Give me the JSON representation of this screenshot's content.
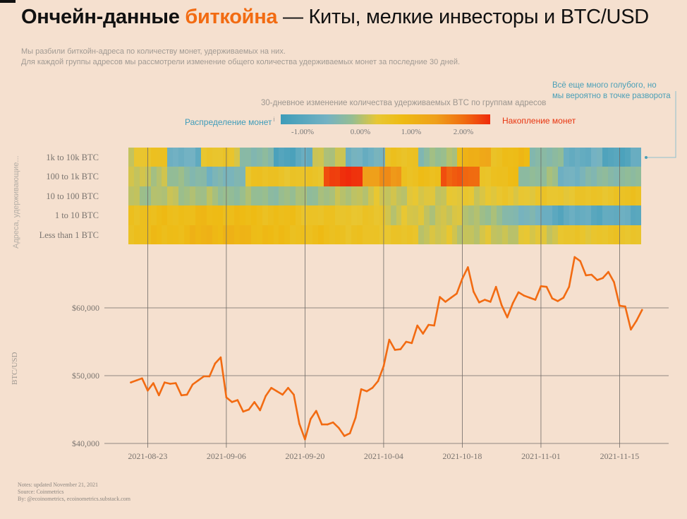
{
  "title": {
    "part1": "Ончейн-данные ",
    "part2": "биткойна",
    "part3": " — Киты, мелкие инвесторы и BTC/USD"
  },
  "subtitle": {
    "line1": "Мы разбили биткойн-адреса по количеству монет, удерживаемых на них.",
    "line2": "Для каждой группы адресов мы рассмотрели изменение общего количества удерживаемых монет за последние 30 дней."
  },
  "annotation": {
    "line1": "Всё еще много голубого, но",
    "line2": "мы вероятно в точке разворота"
  },
  "legend": {
    "title": "30-дневное изменение количества удерживаемых BTC по группам адресов",
    "left_label": "Распределение монет",
    "info_mark": "i",
    "right_label": "Накопление монет",
    "ticks": [
      "-1.00%",
      "0.00%",
      "1.00%",
      "2.00%"
    ],
    "colors": [
      "#3e9cb9",
      "#74b2c3",
      "#95bd93",
      "#e8c733",
      "#eebb14",
      "#efa01a",
      "#f06a10",
      "#ef2a0c"
    ]
  },
  "heatmap": {
    "y_title": "Адреса, удерживающие...",
    "rows": [
      "1k to 10k BTC",
      "100 to 1k BTC",
      "10 to 100 BTC",
      "1 to 10 BTC",
      "Less than 1 BTC"
    ]
  },
  "notes": {
    "line1": "Notes: updated November 21, 2021",
    "line2": "Source: Coinmetrics",
    "line3": "By: @ecoinometrics, ecoinometrics.substack.com"
  },
  "chart_data": [
    {
      "type": "heatmap",
      "title": "30-дневное изменение количества удерживаемых BTC по группам адресов",
      "y_title": "Адреса, удерживающие...",
      "rows": [
        "1k to 10k BTC",
        "100 to 1k BTC",
        "10 to 100 BTC",
        "1 to 10 BTC",
        "Less than 1 BTC"
      ],
      "x_range": [
        "2021-08-22",
        "2021-11-21"
      ],
      "color_scale": {
        "ticks": [
          "-1.00%",
          "0.00%",
          "1.00%",
          "2.00%"
        ],
        "low_label": "Распределение монет",
        "high_label": "Накопление монет"
      },
      "segments_pct_change": [
        [
          [
            0,
            0.8
          ],
          [
            -0.9,
            -0.9
          ],
          [
            0.4,
            0.2
          ],
          [
            -0.4,
            -0.6
          ],
          [
            -1.2,
            -1.0
          ],
          [
            0.0,
            0.0
          ],
          [
            -0.9,
            -0.7
          ],
          [
            0.4,
            0.6
          ],
          [
            -0.5,
            0.0
          ],
          [
            0.8,
            1.3
          ],
          [
            0.6,
            0.8
          ],
          [
            -0.4,
            -0.5
          ],
          [
            -0.9,
            -0.9
          ],
          [
            -1.2,
            -1.0
          ]
        ],
        [
          [
            0.0,
            0.0
          ],
          [
            -0.3,
            -0.5
          ],
          [
            -0.8,
            -0.5
          ],
          [
            0.4,
            0.6
          ],
          [
            0.3,
            0.5
          ],
          [
            2.3,
            2.7
          ],
          [
            1.4,
            1.6
          ],
          [
            0.6,
            0.6
          ],
          [
            2.3,
            1.8
          ],
          [
            0.5,
            0.7
          ],
          [
            -0.3,
            -0.3
          ],
          [
            -0.8,
            -0.6
          ],
          [
            -0.4,
            -0.4
          ]
        ],
        [
          [
            -0.1,
            -0.1
          ],
          [
            -0.2,
            -0.3
          ],
          [
            -0.3,
            -0.1
          ],
          [
            0.0,
            0.1
          ],
          [
            0.1,
            0.2
          ],
          [
            0.2,
            0.3
          ],
          [
            0.3,
            0.5
          ]
        ],
        [
          [
            0.6,
            0.8
          ],
          [
            0.8,
            0.6
          ],
          [
            0.5,
            0.3
          ],
          [
            0.1,
            0.0
          ],
          [
            0.0,
            -1.0
          ],
          [
            -1.0,
            -1.0
          ]
        ],
        [
          [
            0.6,
            0.9
          ],
          [
            1.0,
            0.8
          ],
          [
            0.7,
            0.6
          ],
          [
            0.5,
            0.3
          ],
          [
            0.1,
            0.0
          ],
          [
            0.0,
            0.2
          ],
          [
            0.3,
            0.4
          ]
        ]
      ]
    },
    {
      "type": "line",
      "ylabel": "BTC/USD",
      "xlabel": "",
      "ylim": [
        39000,
        70000
      ],
      "y_ticks": [
        40000,
        50000,
        60000
      ],
      "y_tick_labels": [
        "$40,000",
        "$50,000",
        "$60,000"
      ],
      "x_tick_dates": [
        "2021-08-23",
        "2021-09-06",
        "2021-09-20",
        "2021-10-04",
        "2021-10-18",
        "2021-11-01",
        "2021-11-15"
      ],
      "x_tick_labels": [
        "2021-08-23",
        "2021-09-06",
        "2021-09-20",
        "2021-10-04",
        "2021-10-18",
        "2021-11-01",
        "2021-11-15"
      ],
      "series": [
        {
          "color": "#f26b12",
          "start_date": "2021-08-20",
          "values": [
            49000,
            49300,
            49600,
            47800,
            48900,
            47100,
            49000,
            48800,
            48900,
            47100,
            47200,
            48700,
            49300,
            49900,
            49900,
            51800,
            52700,
            46800,
            46100,
            46400,
            44700,
            45000,
            46100,
            44900,
            47000,
            48200,
            47700,
            47200,
            48200,
            47200,
            42900,
            40600,
            43600,
            44800,
            42800,
            42800,
            43100,
            42300,
            41100,
            41500,
            43800,
            48000,
            47700,
            48200,
            49200,
            51400,
            55300,
            53800,
            53900,
            55000,
            54800,
            57400,
            56200,
            57500,
            57400,
            61600,
            60900,
            61500,
            62100,
            64300,
            66000,
            62400,
            60800,
            61200,
            60900,
            63100,
            60400,
            58600,
            60700,
            62300,
            61800,
            61500,
            61200,
            63200,
            63100,
            61400,
            61000,
            61500,
            63100,
            67500,
            66900,
            64800,
            64900,
            64100,
            64400,
            65300,
            63800,
            60300,
            60200,
            56800,
            58100,
            59700
          ]
        }
      ]
    }
  ]
}
